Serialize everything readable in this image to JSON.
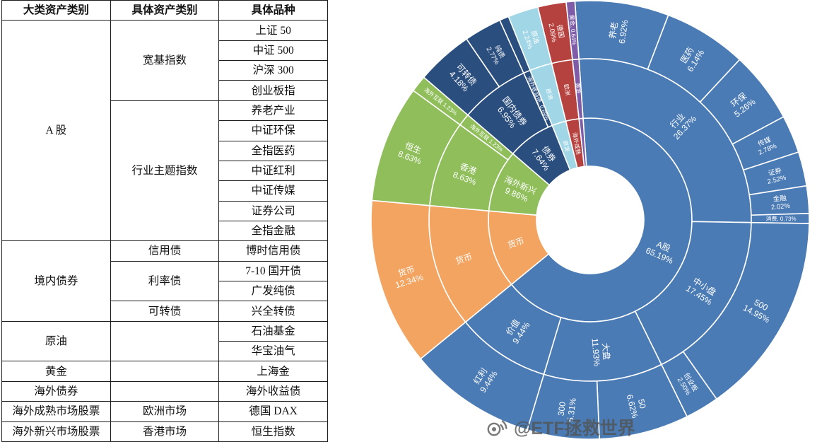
{
  "table": {
    "headers": [
      "大类资产类别",
      "具体资产类别",
      "具体品种"
    ],
    "groups": [
      {
        "major": "A 股",
        "subs": [
          {
            "name": "宽基指数",
            "items": [
              "上证 50",
              "中证 500",
              "沪深 300",
              "创业板指"
            ]
          },
          {
            "name": "行业主题指数",
            "items": [
              "养老产业",
              "中证环保",
              "全指医药",
              "中证红利",
              "中证传媒",
              "证券公司",
              "全指金融"
            ]
          }
        ]
      },
      {
        "major": "境内债券",
        "subs": [
          {
            "name": "信用债",
            "items": [
              "博时信用债"
            ]
          },
          {
            "name": "利率债",
            "items": [
              "7-10 国开债",
              "广发纯债"
            ]
          },
          {
            "name": "可转债",
            "items": [
              "兴全转债"
            ]
          }
        ]
      },
      {
        "major": "原油",
        "subs": [
          {
            "name": "",
            "items": [
              "石油基金",
              "华宝油气"
            ]
          }
        ]
      },
      {
        "major": "黄金",
        "subs": [
          {
            "name": "",
            "items": [
              "上海金"
            ]
          }
        ]
      },
      {
        "major": "海外债券",
        "subs": [
          {
            "name": "",
            "items": [
              "海外收益债"
            ]
          }
        ]
      },
      {
        "major": "海外成熟市场股票",
        "subs": [
          {
            "name": "欧洲市场",
            "items": [
              "德国 DAX"
            ]
          }
        ]
      },
      {
        "major": "海外新兴市场股票",
        "subs": [
          {
            "name": "香港市场",
            "items": [
              "恒生指数"
            ]
          }
        ]
      }
    ]
  },
  "chart_data": {
    "type": "sunburst",
    "unit": "%",
    "rings": [
      "大类资产",
      "具体资产类别",
      "具体品种"
    ],
    "tree": [
      {
        "name": "A股",
        "value": 65.19,
        "color": "#4B7BB4",
        "label_lines": [
          "A股",
          "65.19%"
        ],
        "children": [
          {
            "name": "行业",
            "value": 26.37,
            "label_lines": [
              "行业",
              "26.37%"
            ],
            "children": [
              {
                "name": "养老",
                "value": 6.92,
                "label_lines": [
                  "养老",
                  "6.92%"
                ]
              },
              {
                "name": "医药",
                "value": 6.14,
                "label_lines": [
                  "医药",
                  "6.14%"
                ]
              },
              {
                "name": "环保",
                "value": 5.26,
                "label_lines": [
                  "环保",
                  "5.26%"
                ]
              },
              {
                "name": "传媒",
                "value": 2.78,
                "label_lines": [
                  "传媒",
                  "2.78%"
                ]
              },
              {
                "name": "证券",
                "value": 2.52,
                "label_lines": [
                  "证券",
                  "2.52%"
                ]
              },
              {
                "name": "金融",
                "value": 2.02,
                "label_lines": [
                  "金融",
                  "2.02%"
                ]
              },
              {
                "name": "消费",
                "value": 0.73,
                "label_lines": [
                  "消费, 0.73%"
                ]
              }
            ]
          },
          {
            "name": "中小盘",
            "value": 17.45,
            "label_lines": [
              "中小盘",
              "17.45%"
            ],
            "children": [
              {
                "name": "500",
                "value": 14.95,
                "label_lines": [
                  "500",
                  "14.95%"
                ]
              },
              {
                "name": "创业板",
                "value": 2.5,
                "label_lines": [
                  "创业板",
                  "2.50%"
                ]
              }
            ]
          },
          {
            "name": "大盘",
            "value": 11.93,
            "label_lines": [
              "大盘",
              "11.93%"
            ],
            "children": [
              {
                "name": "50",
                "value": 6.62,
                "label_lines": [
                  "50",
                  "6.62%"
                ]
              },
              {
                "name": "300",
                "value": 5.31,
                "label_lines": [
                  "300",
                  "5.31%"
                ]
              }
            ]
          },
          {
            "name": "价值",
            "value": 9.44,
            "label_lines": [
              "价值",
              "9.44%"
            ],
            "children": [
              {
                "name": "红利",
                "value": 9.44,
                "label_lines": [
                  "红利",
                  "9.44%"
                ]
              }
            ]
          }
        ]
      },
      {
        "name": "货币",
        "value": 12.34,
        "color": "#F3A461",
        "label_lines": [
          "货币"
        ],
        "children": [
          {
            "name": "货币",
            "value": 12.34,
            "label_lines": [
              "货币"
            ],
            "children": [
              {
                "name": "货币",
                "value": 12.34,
                "label_lines": [
                  "货币",
                  "12.34%"
                ]
              }
            ]
          }
        ]
      },
      {
        "name": "海外新兴",
        "value": 9.86,
        "color": "#8FBE5A",
        "label_lines": [
          "海外新兴",
          "9.86%"
        ],
        "children": [
          {
            "name": "香港",
            "value": 8.63,
            "label_lines": [
              "香港",
              "8.63%"
            ],
            "children": [
              {
                "name": "恒生",
                "value": 8.63,
                "label_lines": [
                  "恒生",
                  "8.63%"
                ]
              }
            ]
          },
          {
            "name": "海外互联",
            "value": 1.23,
            "label_lines": [
              "海外互联 1.23%"
            ],
            "children": [
              {
                "name": "海外互联",
                "value": 1.23,
                "label_lines": [
                  "海外互联 1.23%"
                ]
              }
            ]
          }
        ]
      },
      {
        "name": "债券",
        "value": 7.64,
        "color": "#2A4E7E",
        "label_lines": [
          "债券",
          "7.64%"
        ],
        "children": [
          {
            "name": "国内债券",
            "value": 6.95,
            "label_lines": [
              "国内债券",
              "6.95%"
            ],
            "children": [
              {
                "name": "可转债",
                "value": 4.18,
                "label_lines": [
                  "可转债",
                  "4.18%"
                ]
              },
              {
                "name": "纯债",
                "value": 2.77,
                "label_lines": [
                  "纯债",
                  "2.77%"
                ]
              }
            ]
          },
          {
            "name": "海外债券",
            "value": 0.69,
            "label_lines": [
              "海外收益债, 0.69%"
            ],
            "children": [
              {
                "name": "海外收益债",
                "value": 0.69,
                "label_lines": []
              }
            ]
          }
        ]
      },
      {
        "name": "原油",
        "value": 2.24,
        "color": "#A0D6E5",
        "label_lines": [
          "原油"
        ],
        "children": [
          {
            "name": "原油",
            "value": 2.24,
            "label_lines": [
              "原油"
            ],
            "children": [
              {
                "name": "原油",
                "value": 2.24,
                "label_lines": [
                  "原油",
                  "2.24%"
                ]
              }
            ]
          }
        ]
      },
      {
        "name": "海外成熟",
        "value": 2.09,
        "color": "#B5423E",
        "label_lines": [
          "海外成熟"
        ],
        "children": [
          {
            "name": "欧洲",
            "value": 2.09,
            "label_lines": [
              "欧洲"
            ],
            "children": [
              {
                "name": "德国",
                "value": 2.09,
                "label_lines": [
                  "德国",
                  "2.09%"
                ]
              }
            ]
          }
        ]
      },
      {
        "name": "黄金",
        "value": 0.64,
        "color": "#7E5CA7",
        "label_lines": [],
        "children": [
          {
            "name": "黄金",
            "value": 0.64,
            "label_lines": [
              "黄金"
            ],
            "children": [
              {
                "name": "黄金",
                "value": 0.64,
                "label_lines": [
                  "黄金, 0.64%"
                ]
              }
            ]
          }
        ]
      }
    ]
  },
  "watermark": {
    "text": "@ETF拯救世界"
  }
}
